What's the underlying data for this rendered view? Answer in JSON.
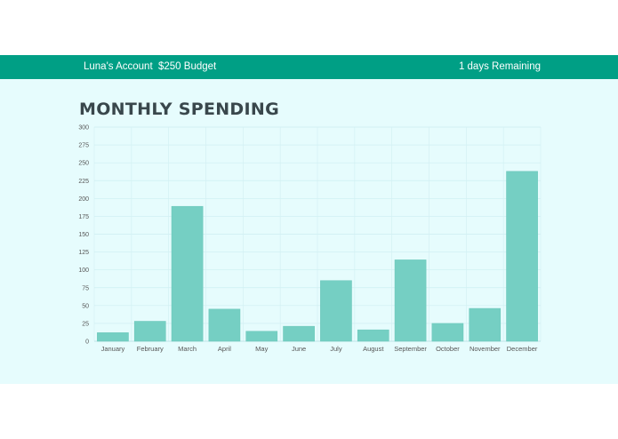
{
  "header": {
    "account_label": "Luna's Account",
    "budget_label": "$250 Budget",
    "remaining_label": "1 days Remaining"
  },
  "page": {
    "title": "MONTHLY SPENDING"
  },
  "colors": {
    "header_bg": "#009f85",
    "panel_bg": "#e6fcfd",
    "bar_fill": "#75cfc3"
  },
  "chart_data": {
    "type": "bar",
    "categories": [
      "January",
      "February",
      "March",
      "April",
      "May",
      "June",
      "July",
      "August",
      "September",
      "October",
      "November",
      "December"
    ],
    "values": [
      12,
      28,
      189,
      45,
      14,
      21,
      85,
      16,
      114,
      25,
      46,
      238
    ],
    "yticks": [
      "0",
      "25",
      "50",
      "75",
      "100",
      "125",
      "150",
      "175",
      "200",
      "225",
      "250",
      "275",
      "300"
    ],
    "ylim": [
      0,
      300
    ],
    "grid": true,
    "legend": false
  }
}
